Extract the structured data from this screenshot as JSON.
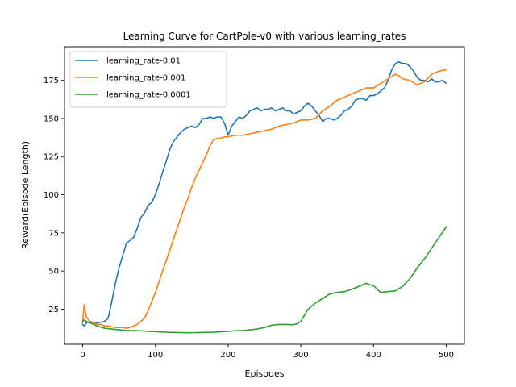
{
  "chart_data": {
    "type": "line",
    "title": "Learning Curve for CartPole-v0 with various learning_rates",
    "xlabel": "Episodes",
    "ylabel": "Reward(Episode Length)",
    "xlim": [
      -25,
      525
    ],
    "ylim": [
      2,
      197
    ],
    "xticks": [
      0,
      100,
      200,
      300,
      400,
      500
    ],
    "yticks": [
      25,
      50,
      75,
      100,
      125,
      150,
      175
    ],
    "grid": false,
    "legend_position": "top-left",
    "series": [
      {
        "name": "learning_rate-0.01",
        "color": "#1f77b4",
        "x": [
          0,
          2,
          5,
          10,
          15,
          20,
          30,
          35,
          40,
          45,
          50,
          55,
          60,
          65,
          70,
          75,
          80,
          85,
          90,
          95,
          100,
          105,
          110,
          115,
          120,
          125,
          130,
          135,
          140,
          145,
          150,
          155,
          160,
          165,
          170,
          175,
          180,
          185,
          190,
          195,
          200,
          205,
          210,
          215,
          220,
          225,
          230,
          235,
          240,
          245,
          250,
          255,
          260,
          265,
          270,
          275,
          280,
          285,
          290,
          295,
          300,
          305,
          310,
          315,
          320,
          325,
          330,
          335,
          340,
          345,
          350,
          355,
          360,
          365,
          370,
          375,
          380,
          385,
          390,
          395,
          400,
          405,
          410,
          415,
          420,
          425,
          430,
          435,
          440,
          445,
          450,
          455,
          460,
          465,
          470,
          475,
          480,
          485,
          490,
          495,
          500
        ],
        "y": [
          15,
          14,
          16,
          17,
          16,
          16,
          17,
          19,
          30,
          42,
          52,
          60,
          68,
          70,
          72,
          78,
          85,
          88,
          93,
          95,
          100,
          107,
          115,
          122,
          130,
          135,
          138,
          141,
          143,
          144,
          145,
          144,
          146,
          150,
          150,
          151,
          150,
          151,
          151,
          147,
          139,
          145,
          148,
          151,
          150,
          152,
          155,
          156,
          157,
          155,
          156,
          156,
          157,
          155,
          156,
          157,
          155,
          155,
          153,
          154,
          155,
          158,
          160,
          158,
          155,
          152,
          148,
          150,
          150,
          149,
          150,
          152,
          155,
          156,
          158,
          162,
          163,
          163,
          162,
          165,
          165,
          166,
          168,
          170,
          175,
          182,
          186,
          187,
          186,
          186,
          184,
          181,
          177,
          175,
          175,
          174,
          176,
          174,
          174,
          175,
          173
        ]
      },
      {
        "name": "learning_rate-0.001",
        "color": "#ff7f0e",
        "x": [
          0,
          2,
          5,
          10,
          15,
          20,
          25,
          30,
          35,
          40,
          45,
          50,
          55,
          60,
          65,
          70,
          75,
          80,
          85,
          90,
          95,
          100,
          105,
          110,
          115,
          120,
          125,
          130,
          135,
          140,
          145,
          150,
          155,
          160,
          165,
          170,
          175,
          180,
          185,
          190,
          195,
          200,
          210,
          220,
          230,
          240,
          250,
          260,
          270,
          280,
          290,
          300,
          310,
          320,
          330,
          340,
          350,
          360,
          370,
          380,
          390,
          400,
          410,
          420,
          430,
          435,
          440,
          450,
          460,
          470,
          480,
          490,
          500
        ],
        "y": [
          16,
          28,
          20,
          17,
          16,
          15,
          15,
          14,
          14,
          13.5,
          13,
          13,
          13,
          12.5,
          13,
          14,
          15,
          17,
          19,
          24,
          30,
          36,
          43,
          50,
          57,
          64,
          71,
          78,
          85,
          92,
          98,
          105,
          111,
          116,
          121,
          126,
          132,
          136,
          137,
          137,
          138,
          138,
          139,
          139,
          140,
          141,
          142,
          143,
          145,
          146,
          147,
          149,
          149,
          150,
          155,
          158,
          162,
          164,
          166,
          168,
          170,
          170,
          173,
          176,
          179,
          178,
          176,
          175,
          172,
          174,
          179,
          181,
          182
        ]
      },
      {
        "name": "learning_rate-0.0001",
        "color": "#2ca02c",
        "x": [
          0,
          2,
          5,
          10,
          15,
          20,
          30,
          40,
          50,
          60,
          70,
          80,
          90,
          100,
          110,
          120,
          130,
          140,
          150,
          160,
          170,
          180,
          190,
          200,
          210,
          220,
          230,
          240,
          250,
          260,
          270,
          280,
          290,
          295,
          300,
          310,
          320,
          330,
          340,
          350,
          360,
          370,
          380,
          385,
          390,
          395,
          400,
          405,
          410,
          420,
          430,
          440,
          450,
          460,
          470,
          480,
          490,
          500
        ],
        "y": [
          17,
          18,
          17,
          16,
          15,
          14,
          12.5,
          12,
          11.5,
          11,
          11,
          10.8,
          10.5,
          10.3,
          10,
          9.8,
          9.7,
          9.6,
          9.6,
          9.7,
          9.8,
          9.9,
          10.2,
          10.5,
          10.8,
          11,
          11.5,
          12,
          13,
          14.5,
          15,
          15,
          14.8,
          15.5,
          17,
          25,
          29,
          32,
          35,
          36,
          36.5,
          38,
          40,
          41,
          42,
          41,
          40.5,
          38,
          36,
          36.5,
          37,
          40,
          45,
          52,
          58,
          65,
          72,
          79
        ]
      }
    ]
  }
}
